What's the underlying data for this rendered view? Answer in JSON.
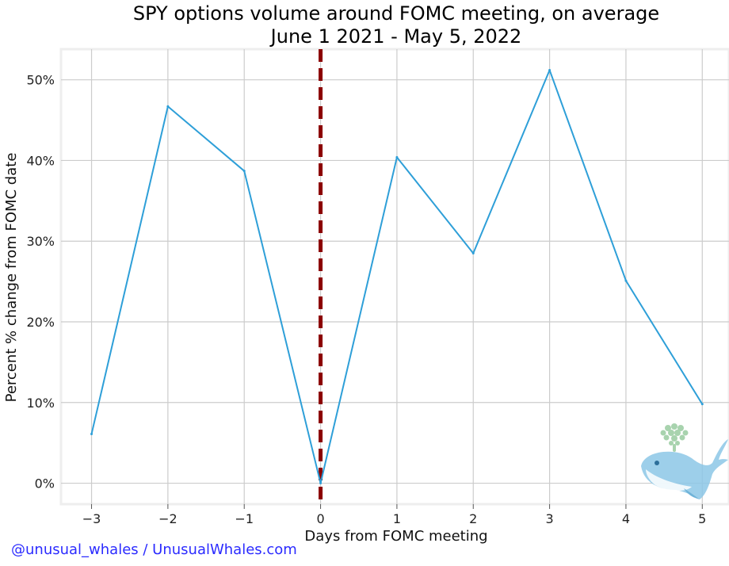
{
  "chart_data": {
    "type": "line",
    "title": [
      "SPY options volume around FOMC meeting, on average",
      "June 1 2021 - May 5, 2022"
    ],
    "xlabel": "Days from FOMC meeting",
    "ylabel": "Percent % change from FOMC date",
    "x": [
      -3,
      -2,
      -1,
      0,
      1,
      2,
      3,
      4,
      5
    ],
    "x_tick_labels": [
      "−3",
      "−2",
      "−1",
      "0",
      "1",
      "2",
      "3",
      "4",
      "5"
    ],
    "y_tick_values": [
      0,
      10,
      20,
      30,
      40,
      50
    ],
    "y_tick_labels": [
      "0%",
      "10%",
      "20%",
      "30%",
      "40%",
      "50%"
    ],
    "series": [
      {
        "values": [
          6.1,
          46.7,
          38.7,
          0.0,
          40.4,
          28.5,
          51.2,
          25.1,
          9.8
        ],
        "color": "#2e9fd8"
      }
    ],
    "vertical_marker": {
      "x": 0,
      "style": "dashed",
      "color": "#8b0000"
    },
    "xlim": [
      -3.4,
      5.35
    ],
    "ylim": [
      -2.6,
      53.8
    ],
    "grid": true
  },
  "credit": "@unusual_whales / UnusualWhales.com",
  "logo_icon": "whale-logo-icon"
}
